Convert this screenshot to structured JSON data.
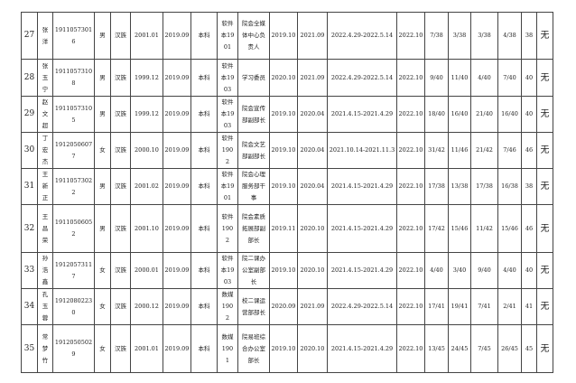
{
  "table": {
    "rows": [
      [
        "27",
        "张洋",
        "19110573016",
        "男",
        "汉族",
        "2001.01",
        "2019.09",
        "本科",
        "软件本1901",
        "院会全媒体中心负责人",
        "2019.10",
        "2021.09",
        "2022.4.29-2022.5.14",
        "2022.10",
        "7/38",
        "3/38",
        "3/38",
        "4/38",
        "38",
        "无"
      ],
      [
        "28",
        "张玉宁",
        "19110573108",
        "男",
        "汉族",
        "1999.12",
        "2019.09",
        "本科",
        "软件本1903",
        "学习委员",
        "2020.10",
        "2021.09",
        "2022.4.29-2022.5.14",
        "2022.10",
        "9/40",
        "11/40",
        "4/40",
        "7/40",
        "40",
        "无"
      ],
      [
        "29",
        "赵文超",
        "19110573105",
        "男",
        "汉族",
        "1999.12",
        "2019.09",
        "本科",
        "软件本1903",
        "院会宣传部副部长",
        "2019.10",
        "2020.04",
        "2021.4.15-2021.4.29",
        "2022.10",
        "18/40",
        "16/40",
        "21/40",
        "16/40",
        "40",
        "无"
      ],
      [
        "30",
        "丁宏杰",
        "19120506077",
        "女",
        "汉族",
        "2000.10",
        "2019.09",
        "本科",
        "软件1902",
        "院会文艺部副部长",
        "2019.10",
        "2020.04",
        "2021.10.14-2021.11.3",
        "2022.10",
        "31/42",
        "11/46",
        "21/42",
        "7/46",
        "46",
        "无"
      ],
      [
        "31",
        "王新正",
        "19110573022",
        "男",
        "汉族",
        "2001.02",
        "2019.09",
        "本科",
        "软件本1901",
        "院会心理服务部干事",
        "2019.10",
        "2020.04",
        "2021.4.15-2021.4.29",
        "2022.10",
        "17/38",
        "13/38",
        "17/38",
        "16/38",
        "38",
        "无"
      ],
      [
        "32",
        "王昌荣",
        "19110506052",
        "男",
        "汉族",
        "2001.10",
        "2019.09",
        "本科",
        "软件1902",
        "院会素质拓展部副部长",
        "2019.11",
        "2020.10",
        "2021.4.15-2021.4.29",
        "2022.10",
        "17/42",
        "15/46",
        "11/42",
        "15/46",
        "46",
        "无"
      ],
      [
        "33",
        "孙浩鑫",
        "19120573117",
        "女",
        "汉族",
        "2000.01",
        "2019.09",
        "本科",
        "软件本1903",
        "院二课办公室副部长",
        "2019.10",
        "2020.10",
        "2021.4.15-2021.4.29",
        "2022.10",
        "4/40",
        "3/40",
        "9/40",
        "4/40",
        "40",
        "无"
      ],
      [
        "34",
        "孔玉蓉",
        "19120802230",
        "女",
        "汉族",
        "2000.12",
        "2019.09",
        "本科",
        "数媒1902",
        "校二课运营部部长",
        "2020.09",
        "2021.09",
        "2022.4.29-2022.5.14",
        "2022.10",
        "17/41",
        "19/41",
        "7/41",
        "2/41",
        "41",
        "无"
      ],
      [
        "35",
        "常梦竹",
        "19120505029",
        "女",
        "汉族",
        "2001.01",
        "2019.09",
        "本科",
        "数媒1901",
        "院易班综合办公室部长",
        "2019.10",
        "2020.10",
        "2021.4.15-2021.4.29",
        "2022.10",
        "13/45",
        "24/45",
        "7/45",
        "26/45",
        "45",
        "无"
      ]
    ]
  }
}
